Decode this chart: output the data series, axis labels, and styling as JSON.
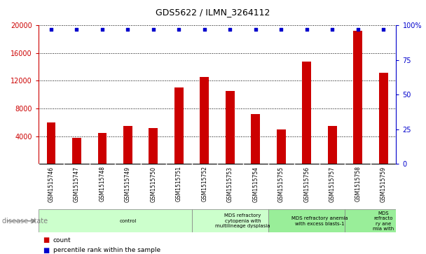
{
  "title": "GDS5622 / ILMN_3264112",
  "samples": [
    "GSM1515746",
    "GSM1515747",
    "GSM1515748",
    "GSM1515749",
    "GSM1515750",
    "GSM1515751",
    "GSM1515752",
    "GSM1515753",
    "GSM1515754",
    "GSM1515755",
    "GSM1515756",
    "GSM1515757",
    "GSM1515758",
    "GSM1515759"
  ],
  "counts": [
    6000,
    3800,
    4500,
    5500,
    5200,
    11000,
    12500,
    10500,
    7200,
    5000,
    14800,
    5500,
    19200,
    13200
  ],
  "percentile_ranks": [
    97,
    97,
    97,
    97,
    97,
    97,
    97,
    97,
    97,
    97,
    97,
    97,
    97,
    97
  ],
  "ylim_left": [
    0,
    20000
  ],
  "ylim_right": [
    0,
    100
  ],
  "yticks_left": [
    4000,
    8000,
    12000,
    16000,
    20000
  ],
  "yticks_right": [
    0,
    25,
    50,
    75,
    100
  ],
  "bar_color": "#cc0000",
  "dot_color": "#0000cc",
  "disease_groups": [
    {
      "label": "control",
      "start": 0,
      "end": 6,
      "color": "#ccffcc"
    },
    {
      "label": "MDS refractory\ncytopenia with\nmultilineage dysplasia",
      "start": 6,
      "end": 9,
      "color": "#ccffcc"
    },
    {
      "label": "MDS refractory anemia\nwith excess blasts-1",
      "start": 9,
      "end": 12,
      "color": "#99ee99"
    },
    {
      "label": "MDS\nrefracto\nry ane\nmia with",
      "start": 12,
      "end": 14,
      "color": "#99ee99"
    }
  ],
  "disease_state_label": "disease state",
  "legend_count_label": "count",
  "legend_percentile_label": "percentile rank within the sample",
  "axis_left_color": "#cc0000",
  "axis_right_color": "#0000cc",
  "bg_color": "#d8d8d8",
  "chart_bg": "#ffffff"
}
